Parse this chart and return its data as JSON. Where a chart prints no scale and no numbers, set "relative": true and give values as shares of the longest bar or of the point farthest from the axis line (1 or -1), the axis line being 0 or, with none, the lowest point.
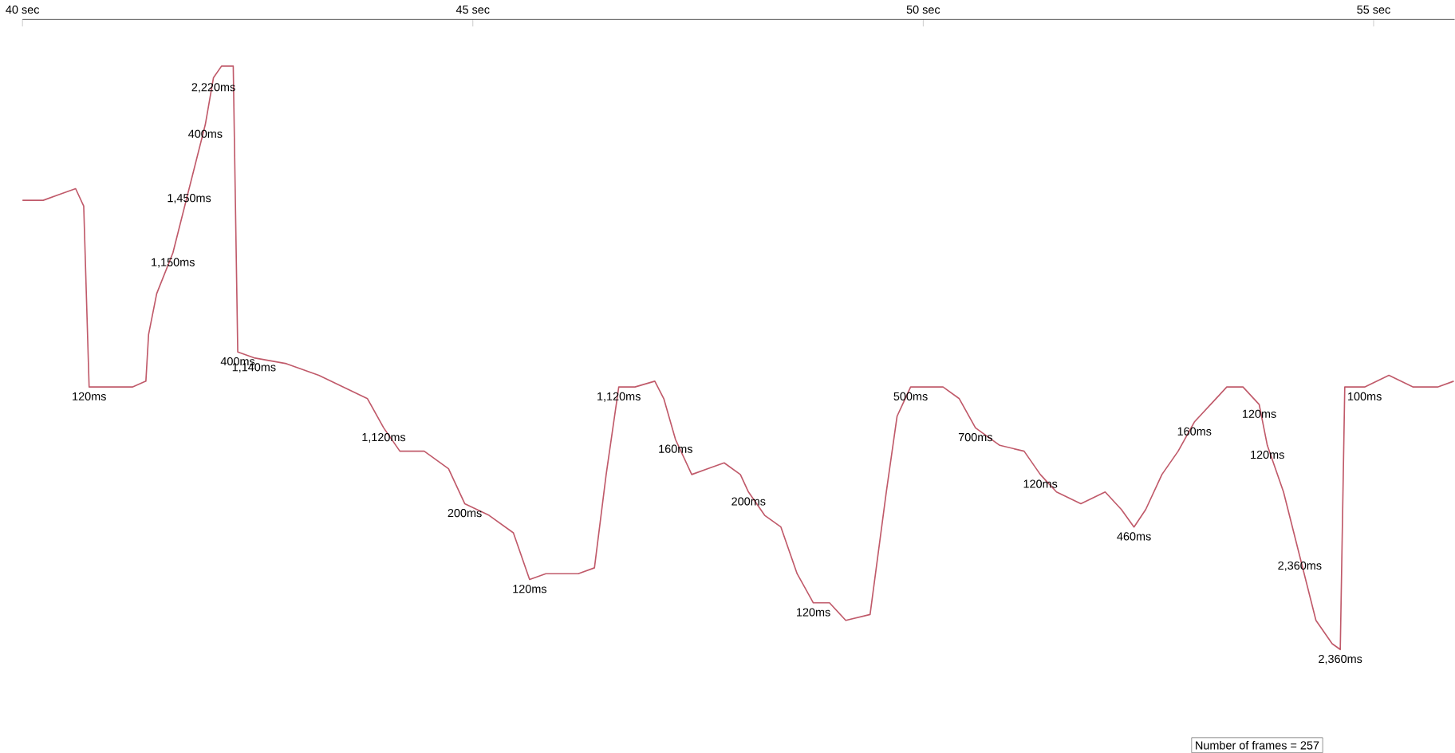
{
  "chart_data": {
    "type": "line",
    "relative": true,
    "grid": false,
    "marker": "none",
    "line_style": "solid",
    "xlim": [
      40,
      55.9
    ],
    "xticks": [
      {
        "value": 40,
        "label": "40 sec"
      },
      {
        "value": 45,
        "label": "45 sec"
      },
      {
        "value": 50,
        "label": "50 sec"
      },
      {
        "value": 55,
        "label": "55 sec"
      }
    ],
    "series": [
      {
        "color": "#c05a6a",
        "x": [
          40.0,
          40.23,
          40.41,
          40.59,
          40.68,
          40.74,
          40.86,
          41.22,
          41.37,
          41.4,
          41.49,
          41.67,
          41.85,
          42.03,
          42.12,
          42.21,
          42.34,
          42.39,
          42.57,
          42.93,
          43.29,
          43.56,
          43.83,
          44.01,
          44.19,
          44.46,
          44.73,
          44.91,
          45.18,
          45.45,
          45.63,
          45.81,
          46.17,
          46.35,
          46.48,
          46.62,
          46.8,
          47.02,
          47.12,
          47.25,
          47.43,
          47.61,
          47.79,
          47.97,
          48.06,
          48.24,
          48.42,
          48.6,
          48.78,
          48.96,
          49.14,
          49.41,
          49.59,
          49.71,
          49.86,
          50.04,
          50.22,
          50.4,
          50.58,
          50.85,
          51.12,
          51.3,
          51.48,
          51.75,
          52.02,
          52.2,
          52.34,
          52.47,
          52.65,
          52.83,
          53.01,
          53.19,
          53.37,
          53.55,
          53.73,
          53.82,
          54.0,
          54.18,
          54.36,
          54.54,
          54.63,
          54.68,
          54.9,
          55.17,
          55.44,
          55.71,
          55.89
        ],
        "values": [
          0.77,
          0.77,
          0.78,
          0.79,
          0.76,
          0.45,
          0.45,
          0.45,
          0.46,
          0.54,
          0.61,
          0.68,
          0.79,
          0.9,
          0.98,
          1,
          1,
          0.51,
          0.5,
          0.49,
          0.47,
          0.45,
          0.43,
          0.38,
          0.34,
          0.34,
          0.31,
          0.25,
          0.23,
          0.2,
          0.12,
          0.13,
          0.13,
          0.14,
          0.3,
          0.45,
          0.45,
          0.46,
          0.43,
          0.36,
          0.3,
          0.31,
          0.32,
          0.3,
          0.27,
          0.23,
          0.21,
          0.13,
          0.08,
          0.08,
          0.05,
          0.06,
          0.27,
          0.4,
          0.45,
          0.45,
          0.45,
          0.43,
          0.38,
          0.35,
          0.34,
          0.3,
          0.27,
          0.25,
          0.27,
          0.24,
          0.21,
          0.24,
          0.3,
          0.34,
          0.39,
          0.42,
          0.45,
          0.45,
          0.42,
          0.35,
          0.27,
          0.16,
          0.05,
          0.01,
          0,
          0.45,
          0.45,
          0.47,
          0.45,
          0.45,
          0.46
        ]
      }
    ],
    "annotations": [
      {
        "text": "120ms",
        "x": 40.74,
        "y": 0.45
      },
      {
        "text": "2,220ms",
        "x": 42.12,
        "y": 0.98
      },
      {
        "text": "400ms",
        "x": 42.03,
        "y": 0.9
      },
      {
        "text": "1,450ms",
        "x": 41.85,
        "y": 0.79
      },
      {
        "text": "1,150ms",
        "x": 41.67,
        "y": 0.68
      },
      {
        "text": "400ms",
        "x": 42.39,
        "y": 0.51
      },
      {
        "text": "1,140ms",
        "x": 42.57,
        "y": 0.5
      },
      {
        "text": "1,120ms",
        "x": 44.01,
        "y": 0.38
      },
      {
        "text": "200ms",
        "x": 44.91,
        "y": 0.25
      },
      {
        "text": "120ms",
        "x": 45.63,
        "y": 0.12
      },
      {
        "text": "1,120ms",
        "x": 46.62,
        "y": 0.45
      },
      {
        "text": "160ms",
        "x": 47.25,
        "y": 0.36
      },
      {
        "text": "200ms",
        "x": 48.06,
        "y": 0.27
      },
      {
        "text": "120ms",
        "x": 48.78,
        "y": 0.08
      },
      {
        "text": "500ms",
        "x": 49.86,
        "y": 0.45
      },
      {
        "text": "700ms",
        "x": 50.58,
        "y": 0.38
      },
      {
        "text": "120ms",
        "x": 51.3,
        "y": 0.3
      },
      {
        "text": "460ms",
        "x": 52.34,
        "y": 0.21
      },
      {
        "text": "160ms",
        "x": 53.01,
        "y": 0.39
      },
      {
        "text": "120ms",
        "x": 53.73,
        "y": 0.42
      },
      {
        "text": "120ms",
        "x": 53.82,
        "y": 0.35
      },
      {
        "text": "2,360ms",
        "x": 54.18,
        "y": 0.16
      },
      {
        "text": "100ms",
        "x": 54.9,
        "y": 0.45
      },
      {
        "text": "2,360ms",
        "x": 54.63,
        "y": 0
      },
      "Number of frames = 257"
    ]
  }
}
